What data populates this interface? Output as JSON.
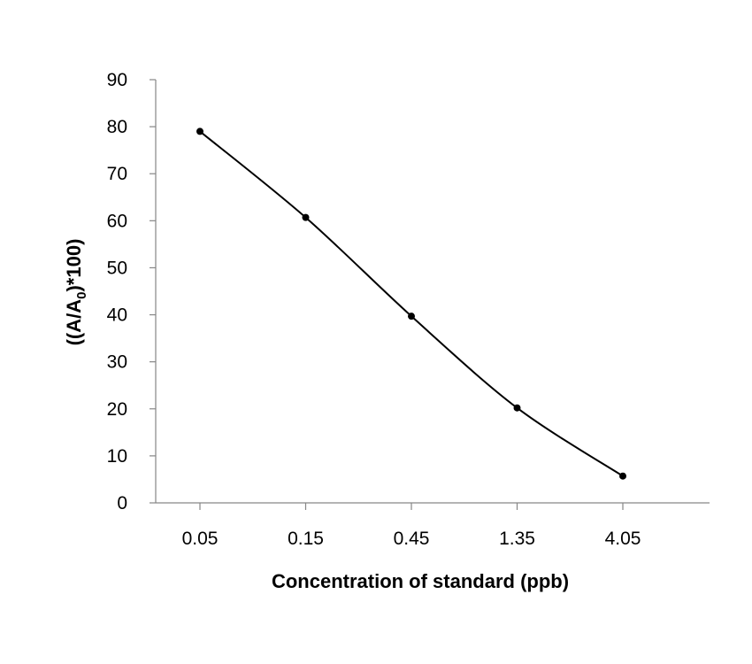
{
  "chart_data": {
    "type": "line",
    "title": "",
    "xlabel": "Concentration of standard (ppb)",
    "ylabel": {
      "prefix": "((A/A",
      "subscript": "0",
      "suffix": ")*100)"
    },
    "categories": [
      "0.05",
      "0.15",
      "0.45",
      "1.35",
      "4.05"
    ],
    "series": [
      {
        "values": [
          79,
          60.7,
          39.7,
          20.2,
          5.7
        ]
      }
    ],
    "ylim": [
      0,
      90
    ],
    "yticks": [
      0,
      10,
      20,
      30,
      40,
      50,
      60,
      70,
      80,
      90
    ],
    "grid": false,
    "legend": "none",
    "line_color": "#000000",
    "axis_color": "#868686"
  }
}
